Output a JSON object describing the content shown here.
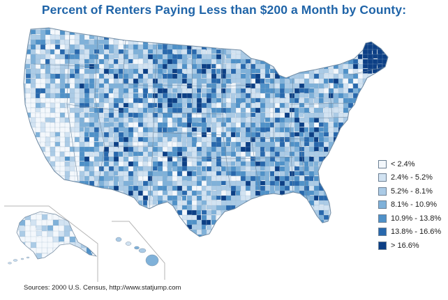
{
  "title": "Percent of Renters Paying Less than $200 a Month by County:",
  "source": "Sources: 2000 U.S. Census, http://www.statjump.com",
  "legend": {
    "items": [
      {
        "label": "< 2.4%",
        "color": "#f4f8fc"
      },
      {
        "label": "2.4% - 5.2%",
        "color": "#d2e3f2"
      },
      {
        "label": "5.2% - 8.1%",
        "color": "#abcbe6"
      },
      {
        "label": "8.1% - 10.9%",
        "color": "#7fb1d9"
      },
      {
        "label": "10.9% - 13.8%",
        "color": "#4f91c8"
      },
      {
        "label": "13.8% - 16.6%",
        "color": "#2868ad"
      },
      {
        "label": "> 16.6%",
        "color": "#0c3f85"
      }
    ]
  },
  "map": {
    "type": "choropleth",
    "region": "United States counties",
    "insets": [
      "Alaska",
      "Hawaii"
    ],
    "border_color": "#8aa4bd"
  }
}
